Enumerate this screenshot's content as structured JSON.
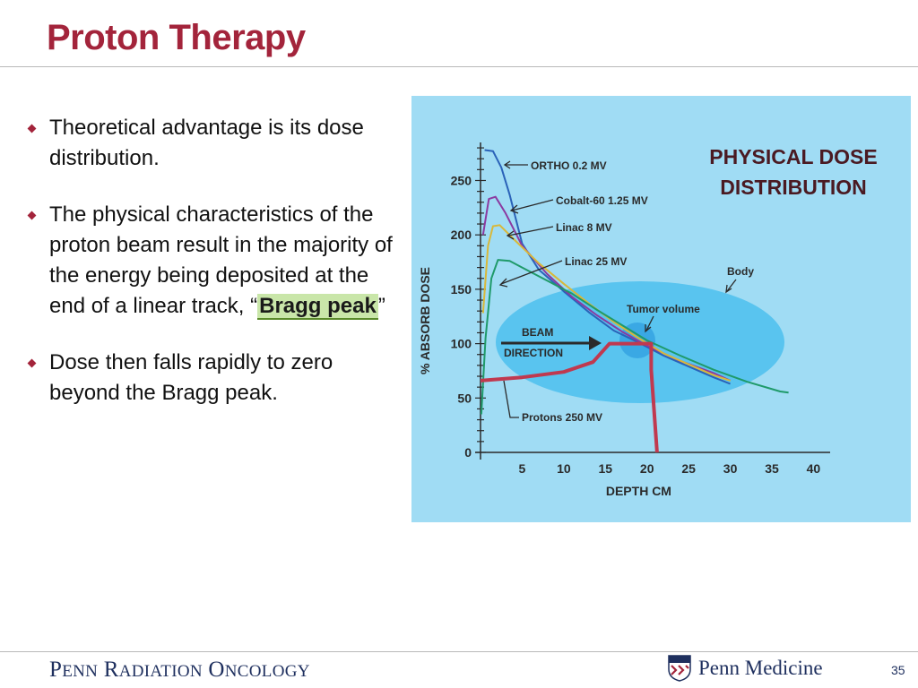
{
  "slide": {
    "title": "Proton Therapy",
    "page_number": "35"
  },
  "bullets": [
    {
      "text": "Theoretical advantage is its dose distribution."
    },
    {
      "text_before": "The physical characteristics of the proton beam result in the majority of the energy being deposited at the end of a linear track, “",
      "highlight": "Bragg peak",
      "text_after": "”"
    },
    {
      "text": "Dose then falls rapidly to zero beyond the Bragg peak."
    }
  ],
  "figure": {
    "title_line1": "PHYSICAL DOSE",
    "title_line2": "DISTRIBUTION",
    "annotations": {
      "body": "Body",
      "tumor": "Tumor volume",
      "beam_line1": "BEAM",
      "beam_line2": "DIRECTION"
    }
  },
  "chart_data": {
    "type": "line",
    "xlabel": "DEPTH CM",
    "ylabel": "% ABSORB DOSE",
    "x_ticks": [
      5,
      10,
      15,
      20,
      25,
      30,
      35,
      40
    ],
    "y_ticks": [
      0,
      50,
      100,
      150,
      200,
      250
    ],
    "xlim": [
      0,
      42
    ],
    "ylim": [
      0,
      285
    ],
    "series": [
      {
        "name": "ORTHO 0.2 MV",
        "color": "#2a62b8",
        "points": [
          [
            0.5,
            278
          ],
          [
            1.5,
            277
          ],
          [
            2.5,
            262
          ],
          [
            3.5,
            237
          ],
          [
            5,
            192
          ],
          [
            7,
            168
          ],
          [
            10,
            148
          ],
          [
            13,
            129
          ],
          [
            16,
            112
          ],
          [
            19,
            101
          ],
          [
            22,
            89
          ],
          [
            25,
            79
          ],
          [
            28,
            69
          ],
          [
            30,
            63
          ]
        ]
      },
      {
        "name": "Cobalt-60 1.25 MV",
        "color": "#8b3aa0",
        "points": [
          [
            0.3,
            200
          ],
          [
            1,
            233
          ],
          [
            1.8,
            235
          ],
          [
            3,
            220
          ],
          [
            5,
            190
          ],
          [
            8,
            164
          ],
          [
            11,
            143
          ],
          [
            14,
            126
          ],
          [
            17,
            111
          ],
          [
            20,
            98
          ],
          [
            24,
            84
          ],
          [
            28,
            73
          ],
          [
            30,
            66
          ]
        ]
      },
      {
        "name": "Linac 8 MV",
        "color": "#d8b83a",
        "points": [
          [
            0.3,
            128
          ],
          [
            0.9,
            190
          ],
          [
            1.5,
            208
          ],
          [
            2.3,
            209
          ],
          [
            4,
            196
          ],
          [
            7,
            174
          ],
          [
            10,
            155
          ],
          [
            13,
            137
          ],
          [
            16,
            120
          ],
          [
            19,
            105
          ],
          [
            22,
            91
          ],
          [
            25,
            81
          ],
          [
            28,
            71
          ],
          [
            30,
            66
          ]
        ]
      },
      {
        "name": "Linac 25 MV",
        "color": "#1f9a6a",
        "points": [
          [
            0.1,
            35
          ],
          [
            0.6,
            105
          ],
          [
            1.3,
            160
          ],
          [
            2.1,
            177
          ],
          [
            3.5,
            176
          ],
          [
            5,
            170
          ],
          [
            8,
            158
          ],
          [
            11,
            146
          ],
          [
            14,
            131
          ],
          [
            17,
            117
          ],
          [
            20,
            103
          ],
          [
            24,
            89
          ],
          [
            28,
            76
          ],
          [
            32,
            65
          ],
          [
            36,
            56
          ],
          [
            37,
            55
          ]
        ]
      },
      {
        "name": "Protons 250 MV",
        "color": "#c0394f",
        "points": [
          [
            0,
            66
          ],
          [
            5,
            69
          ],
          [
            10,
            74
          ],
          [
            13.5,
            83
          ],
          [
            15.5,
            100
          ],
          [
            20.5,
            100
          ],
          [
            20.5,
            76
          ],
          [
            21.2,
            0
          ]
        ]
      }
    ]
  }
}
